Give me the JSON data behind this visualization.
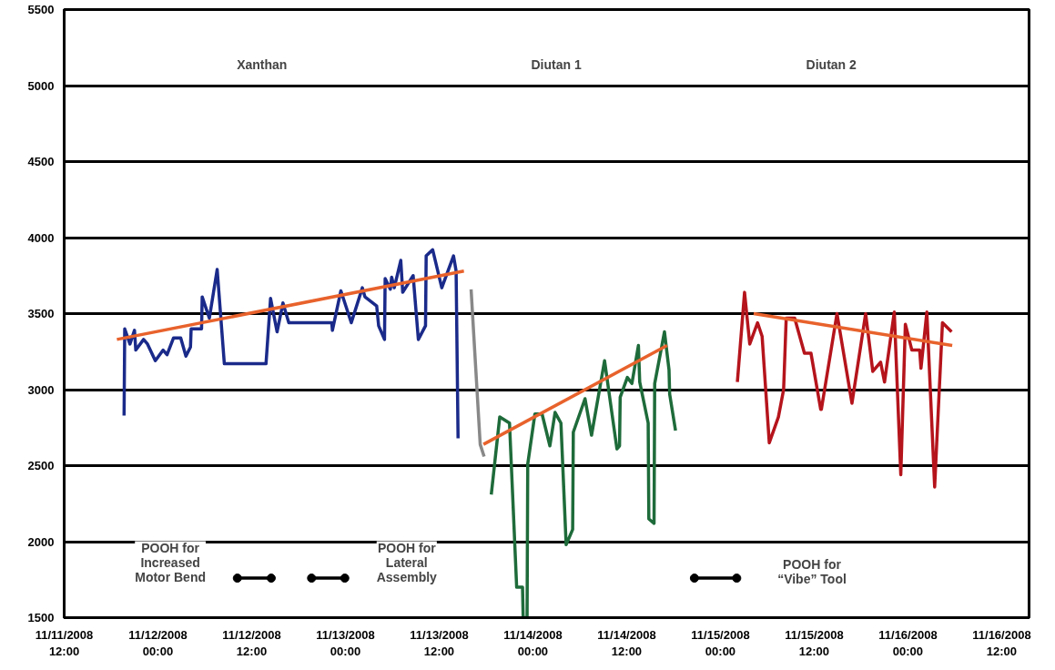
{
  "chart_data": {
    "type": "line",
    "xlim": [
      "2008-11-11T12:00",
      "2008-11-16T15:30"
    ],
    "xticks": [
      {
        "value": "2008-11-11T12:00",
        "label": "11/11/2008\n12:00"
      },
      {
        "value": "2008-11-12T00:00",
        "label": "11/12/2008\n00:00"
      },
      {
        "value": "2008-11-12T12:00",
        "label": "11/12/2008\n12:00"
      },
      {
        "value": "2008-11-13T00:00",
        "label": "11/13/2008\n00:00"
      },
      {
        "value": "2008-11-13T12:00",
        "label": "11/13/2008\n12:00"
      },
      {
        "value": "2008-11-14T00:00",
        "label": "11/14/2008\n00:00"
      },
      {
        "value": "2008-11-14T12:00",
        "label": "11/14/2008\n12:00"
      },
      {
        "value": "2008-11-15T00:00",
        "label": "11/15/2008\n00:00"
      },
      {
        "value": "2008-11-15T12:00",
        "label": "11/15/2008\n12:00"
      },
      {
        "value": "2008-11-16T00:00",
        "label": "11/16/2008\n00:00"
      },
      {
        "value": "2008-11-16T12:00",
        "label": "11/16/2008\n12:00"
      }
    ],
    "ylim": [
      1500,
      5500
    ],
    "yticks": [
      1500,
      2000,
      2500,
      3000,
      3500,
      4000,
      4500,
      5000,
      5500
    ],
    "grid": "y",
    "line_style": "solid",
    "series": [
      {
        "color": "#1a2a8a",
        "x": [
          "2008-11-11T19:40",
          "2008-11-11T19:45",
          "2008-11-11T20:25",
          "2008-11-11T21:00",
          "2008-11-11T21:10",
          "2008-11-11T22:10",
          "2008-11-11T22:40",
          "2008-11-11T23:40",
          "2008-11-12T00:40",
          "2008-11-12T01:10",
          "2008-11-12T02:00",
          "2008-11-12T02:55",
          "2008-11-12T03:35",
          "2008-11-12T04:10",
          "2008-11-12T04:15",
          "2008-11-12T05:35",
          "2008-11-12T05:40",
          "2008-11-12T06:35",
          "2008-11-12T07:35",
          "2008-11-12T08:30",
          "2008-11-12T13:50",
          "2008-11-12T14:25",
          "2008-11-12T15:15",
          "2008-11-12T16:00",
          "2008-11-12T16:45",
          "2008-11-12T22:15",
          "2008-11-12T22:20",
          "2008-11-12T23:25",
          "2008-11-13T00:45",
          "2008-11-13T02:10",
          "2008-11-13T02:30",
          "2008-11-13T04:00",
          "2008-11-13T04:15",
          "2008-11-13T05:00",
          "2008-11-13T05:05",
          "2008-11-13T05:45",
          "2008-11-13T05:55",
          "2008-11-13T06:15",
          "2008-11-13T07:05",
          "2008-11-13T07:20",
          "2008-11-13T08:40",
          "2008-11-13T09:20",
          "2008-11-13T10:15",
          "2008-11-13T10:20",
          "2008-11-13T11:10",
          "2008-11-13T12:20",
          "2008-11-13T13:50",
          "2008-11-13T14:10",
          "2008-11-13T14:25"
        ],
        "values": [
          2830,
          3400,
          3300,
          3390,
          3260,
          3330,
          3300,
          3190,
          3260,
          3230,
          3340,
          3340,
          3220,
          3280,
          3400,
          3400,
          3610,
          3470,
          3790,
          3170,
          3170,
          3600,
          3380,
          3570,
          3440,
          3440,
          3390,
          3650,
          3440,
          3670,
          3610,
          3550,
          3420,
          3330,
          3730,
          3660,
          3740,
          3670,
          3850,
          3640,
          3750,
          3330,
          3420,
          3880,
          3920,
          3670,
          3880,
          3780,
          2680
        ]
      },
      {
        "color": "#888888",
        "x": [
          "2008-11-13T16:05",
          "2008-11-13T17:15",
          "2008-11-13T17:45"
        ],
        "values": [
          3660,
          2640,
          2560
        ]
      },
      {
        "color": "#1e6b3a",
        "x": [
          "2008-11-13T18:40",
          "2008-11-13T19:45",
          "2008-11-13T21:00",
          "2008-11-13T21:55",
          "2008-11-13T22:40",
          "2008-11-13T22:45",
          "2008-11-13T23:15",
          "2008-11-13T23:20",
          "2008-11-14T00:15",
          "2008-11-14T01:10",
          "2008-11-14T02:10",
          "2008-11-14T02:50",
          "2008-11-14T03:35",
          "2008-11-14T04:15",
          "2008-11-14T05:05",
          "2008-11-14T05:10",
          "2008-11-14T06:40",
          "2008-11-14T07:30",
          "2008-11-14T09:10",
          "2008-11-14T10:45",
          "2008-11-14T11:05",
          "2008-11-14T11:10",
          "2008-11-14T12:05",
          "2008-11-14T12:40",
          "2008-11-14T13:30",
          "2008-11-14T13:40",
          "2008-11-14T14:45",
          "2008-11-14T14:50",
          "2008-11-14T15:30",
          "2008-11-14T15:35",
          "2008-11-14T16:50",
          "2008-11-14T17:25",
          "2008-11-14T17:30",
          "2008-11-14T18:15"
        ],
        "values": [
          2310,
          2820,
          2780,
          1700,
          1700,
          1500,
          1500,
          2510,
          2840,
          2840,
          2630,
          2850,
          2780,
          1980,
          2080,
          2720,
          2940,
          2700,
          3190,
          2610,
          2630,
          2950,
          3080,
          3040,
          3290,
          3050,
          2780,
          2150,
          2120,
          3040,
          3380,
          3130,
          2970,
          2730
        ]
      },
      {
        "color": "#b5141c",
        "x": [
          "2008-11-15T02:10",
          "2008-11-15T03:05",
          "2008-11-15T03:45",
          "2008-11-15T04:45",
          "2008-11-15T05:20",
          "2008-11-15T06:15",
          "2008-11-15T07:25",
          "2008-11-15T08:05",
          "2008-11-15T08:25",
          "2008-11-15T09:30",
          "2008-11-15T10:45",
          "2008-11-15T11:35",
          "2008-11-15T12:50",
          "2008-11-15T12:55",
          "2008-11-15T14:55",
          "2008-11-15T16:50",
          "2008-11-15T18:35",
          "2008-11-15T19:30",
          "2008-11-15T20:30",
          "2008-11-15T21:00",
          "2008-11-15T22:15",
          "2008-11-15T23:05",
          "2008-11-15T23:40",
          "2008-11-16T00:30",
          "2008-11-16T01:30",
          "2008-11-16T01:40",
          "2008-11-16T02:25",
          "2008-11-16T03:25",
          "2008-11-16T04:25",
          "2008-11-16T05:35"
        ],
        "values": [
          3050,
          3640,
          3300,
          3440,
          3350,
          2650,
          2820,
          3000,
          3470,
          3470,
          3240,
          3240,
          2870,
          2870,
          3500,
          2910,
          3500,
          3120,
          3180,
          3050,
          3510,
          2440,
          3430,
          3260,
          3260,
          3140,
          3510,
          2360,
          3440,
          3380
        ]
      },
      {
        "color": "#e8622c",
        "x": [
          "2008-11-11T18:45",
          "2008-11-13T15:10"
        ],
        "values": [
          3330,
          3780
        ]
      },
      {
        "color": "#e8622c",
        "x": [
          "2008-11-13T17:40",
          "2008-11-14T17:10"
        ],
        "values": [
          2640,
          3290
        ]
      },
      {
        "color": "#e8622c",
        "x": [
          "2008-11-15T04:15",
          "2008-11-16T05:40"
        ],
        "values": [
          3500,
          3290
        ]
      },
      {
        "color": "#000000",
        "marker": "circle",
        "x": [
          "2008-11-12T10:10",
          "2008-11-12T14:30",
          "2008-11-12T17:00",
          "2008-11-12T19:40",
          "2008-11-12T23:55",
          "2008-11-14T08:00",
          "2008-11-14T20:40",
          "2008-11-15T02:05"
        ],
        "values": [
          1760,
          1760,
          null,
          1760,
          1760,
          null,
          1760,
          1760
        ]
      }
    ],
    "annotations": [
      "Xanthan",
      "Diutan 1",
      "Diutan 2",
      "POOH for\nIncreased\nMotor Bend",
      "POOH for\nLateral\nAssembly",
      "POOH for\n“Vibe” Tool"
    ]
  }
}
